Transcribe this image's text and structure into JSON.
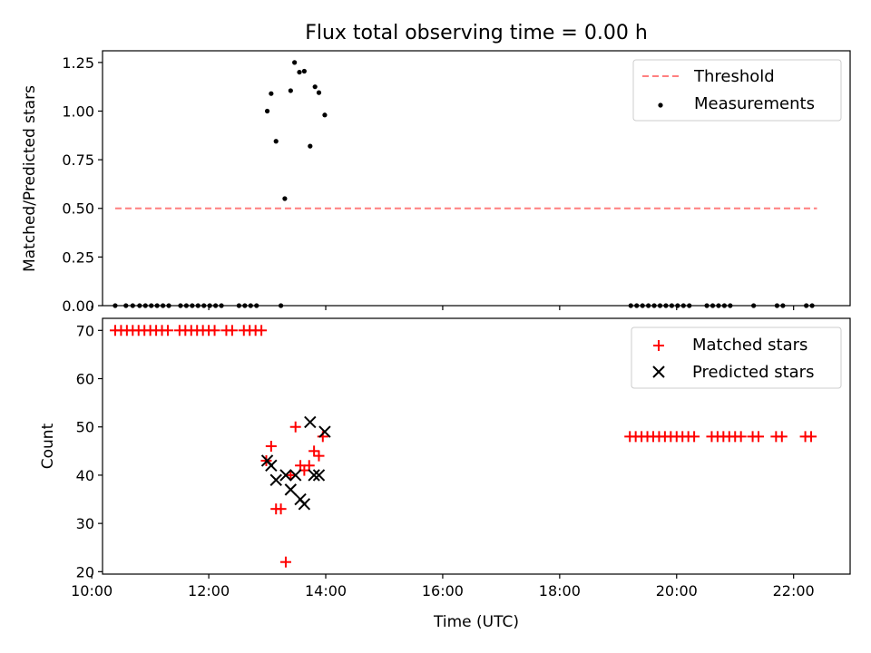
{
  "chart_data": [
    {
      "type": "scatter",
      "title": "Flux total observing time = 0.00 h",
      "xlabel": "",
      "ylabel": "Matched/Predicted stars",
      "xlim": [
        "10:11",
        "22:58"
      ],
      "ylim": [
        0,
        1.31
      ],
      "x_ticks": [
        "10:00",
        "12:00",
        "14:00",
        "16:00",
        "18:00",
        "20:00",
        "22:00"
      ],
      "y_ticks": [
        "0.00",
        "0.25",
        "0.50",
        "0.75",
        "1.00",
        "1.25"
      ],
      "legend_position": "top-right",
      "series": [
        {
          "name": "Threshold",
          "kind": "dashed-line",
          "color": "#ff7f7f",
          "x": [
            "10:24",
            "22:24"
          ],
          "y": [
            0.5,
            0.5
          ]
        },
        {
          "name": "Measurements",
          "kind": "dot",
          "color": "#000000",
          "x": [
            "13:00",
            "13:04",
            "13:09",
            "13:18",
            "13:24",
            "13:28",
            "13:33",
            "13:38",
            "13:44",
            "13:49",
            "13:53",
            "13:59",
            "10:24",
            "10:35",
            "10:42",
            "10:49",
            "10:55",
            "11:01",
            "11:07",
            "11:13",
            "11:19",
            "11:31",
            "11:37",
            "11:43",
            "11:49",
            "11:55",
            "12:01",
            "12:07",
            "12:13",
            "12:31",
            "12:37",
            "12:43",
            "12:49",
            "13:14",
            "19:13",
            "19:19",
            "19:25",
            "19:31",
            "19:37",
            "19:43",
            "19:49",
            "19:55",
            "20:01",
            "20:07",
            "20:13",
            "20:31",
            "20:37",
            "20:43",
            "20:49",
            "20:55",
            "21:19",
            "21:43",
            "21:49",
            "22:13",
            "22:19"
          ],
          "y": [
            1.0,
            1.09,
            0.845,
            0.55,
            1.105,
            1.25,
            1.2,
            1.205,
            0.82,
            1.125,
            1.095,
            0.98,
            0,
            0,
            0,
            0,
            0,
            0,
            0,
            0,
            0,
            0,
            0,
            0,
            0,
            0,
            0,
            0,
            0,
            0,
            0,
            0,
            0,
            0,
            0,
            0,
            0,
            0,
            0,
            0,
            0,
            0,
            0,
            0,
            0,
            0,
            0,
            0,
            0,
            0,
            0,
            0,
            0,
            0,
            0
          ]
        }
      ]
    },
    {
      "type": "scatter",
      "title": "",
      "xlabel": "Time (UTC)",
      "ylabel": "Count",
      "xlim": [
        "10:11",
        "22:58"
      ],
      "ylim": [
        19.5,
        72.5
      ],
      "x_ticks": [
        "10:00",
        "12:00",
        "14:00",
        "16:00",
        "18:00",
        "20:00",
        "22:00"
      ],
      "y_ticks": [
        "20",
        "30",
        "40",
        "50",
        "60",
        "70"
      ],
      "legend_position": "top-right",
      "series": [
        {
          "name": "Matched stars",
          "marker": "plus",
          "color": "#ff0000",
          "x": [
            "10:24",
            "10:30",
            "10:36",
            "10:42",
            "10:48",
            "10:54",
            "11:00",
            "11:06",
            "11:12",
            "11:18",
            "11:30",
            "11:36",
            "11:42",
            "11:48",
            "11:54",
            "12:00",
            "12:06",
            "12:18",
            "12:24",
            "12:36",
            "12:42",
            "12:48",
            "12:54",
            "12:59",
            "13:04",
            "13:09",
            "13:14",
            "13:19",
            "13:24",
            "13:29",
            "13:34",
            "13:38",
            "13:43",
            "13:48",
            "13:53",
            "13:57",
            "19:12",
            "19:18",
            "19:24",
            "19:30",
            "19:36",
            "19:42",
            "19:48",
            "19:54",
            "20:00",
            "20:06",
            "20:12",
            "20:18",
            "20:36",
            "20:42",
            "20:48",
            "20:54",
            "21:00",
            "21:06",
            "21:18",
            "21:24",
            "21:42",
            "21:48",
            "22:12",
            "22:18"
          ],
          "y": [
            70,
            70,
            70,
            70,
            70,
            70,
            70,
            70,
            70,
            70,
            70,
            70,
            70,
            70,
            70,
            70,
            70,
            70,
            70,
            70,
            70,
            70,
            70,
            43,
            46,
            33,
            33,
            22,
            40,
            50,
            42,
            41,
            42,
            45,
            44,
            48,
            48,
            48,
            48,
            48,
            48,
            48,
            48,
            48,
            48,
            48,
            48,
            48,
            48,
            48,
            48,
            48,
            48,
            48,
            48,
            48,
            48,
            48,
            48,
            48
          ]
        },
        {
          "name": "Predicted stars",
          "marker": "x",
          "color": "#000000",
          "x": [
            "13:00",
            "13:04",
            "13:09",
            "13:19",
            "13:24",
            "13:29",
            "13:34",
            "13:38",
            "13:44",
            "13:48",
            "13:53",
            "13:59"
          ],
          "y": [
            43,
            42,
            39,
            40,
            37,
            40,
            35,
            34,
            51,
            40,
            40,
            49
          ]
        }
      ]
    }
  ]
}
